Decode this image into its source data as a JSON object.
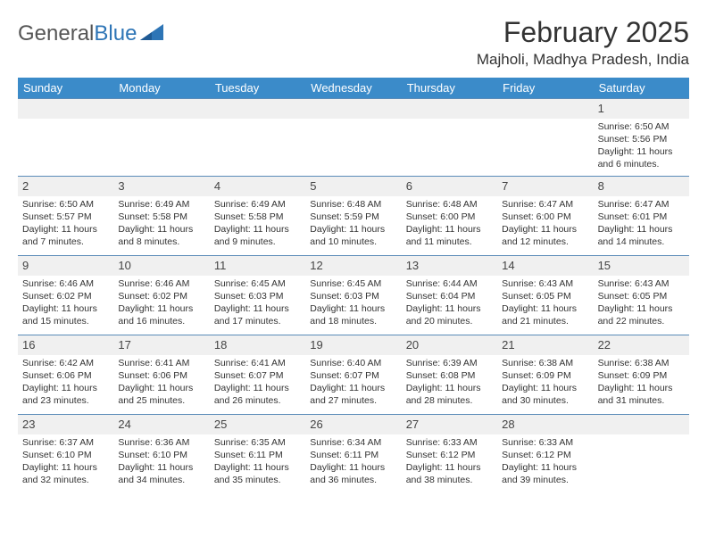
{
  "logo": {
    "text_a": "General",
    "text_b": "Blue",
    "icon_color": "#2e75b6"
  },
  "title": "February 2025",
  "location": "Majholi, Madhya Pradesh, India",
  "weekday_bg": "#3b8bc9",
  "weekday_fg": "#ffffff",
  "daynum_bg": "#f0f0f0",
  "border_color": "#5a8bb8",
  "text_color": "#333333",
  "weekdays": [
    "Sunday",
    "Monday",
    "Tuesday",
    "Wednesday",
    "Thursday",
    "Friday",
    "Saturday"
  ],
  "weeks": [
    [
      {
        "n": "",
        "sr": "",
        "ss": "",
        "dl": ""
      },
      {
        "n": "",
        "sr": "",
        "ss": "",
        "dl": ""
      },
      {
        "n": "",
        "sr": "",
        "ss": "",
        "dl": ""
      },
      {
        "n": "",
        "sr": "",
        "ss": "",
        "dl": ""
      },
      {
        "n": "",
        "sr": "",
        "ss": "",
        "dl": ""
      },
      {
        "n": "",
        "sr": "",
        "ss": "",
        "dl": ""
      },
      {
        "n": "1",
        "sr": "Sunrise: 6:50 AM",
        "ss": "Sunset: 5:56 PM",
        "dl": "Daylight: 11 hours and 6 minutes."
      }
    ],
    [
      {
        "n": "2",
        "sr": "Sunrise: 6:50 AM",
        "ss": "Sunset: 5:57 PM",
        "dl": "Daylight: 11 hours and 7 minutes."
      },
      {
        "n": "3",
        "sr": "Sunrise: 6:49 AM",
        "ss": "Sunset: 5:58 PM",
        "dl": "Daylight: 11 hours and 8 minutes."
      },
      {
        "n": "4",
        "sr": "Sunrise: 6:49 AM",
        "ss": "Sunset: 5:58 PM",
        "dl": "Daylight: 11 hours and 9 minutes."
      },
      {
        "n": "5",
        "sr": "Sunrise: 6:48 AM",
        "ss": "Sunset: 5:59 PM",
        "dl": "Daylight: 11 hours and 10 minutes."
      },
      {
        "n": "6",
        "sr": "Sunrise: 6:48 AM",
        "ss": "Sunset: 6:00 PM",
        "dl": "Daylight: 11 hours and 11 minutes."
      },
      {
        "n": "7",
        "sr": "Sunrise: 6:47 AM",
        "ss": "Sunset: 6:00 PM",
        "dl": "Daylight: 11 hours and 12 minutes."
      },
      {
        "n": "8",
        "sr": "Sunrise: 6:47 AM",
        "ss": "Sunset: 6:01 PM",
        "dl": "Daylight: 11 hours and 14 minutes."
      }
    ],
    [
      {
        "n": "9",
        "sr": "Sunrise: 6:46 AM",
        "ss": "Sunset: 6:02 PM",
        "dl": "Daylight: 11 hours and 15 minutes."
      },
      {
        "n": "10",
        "sr": "Sunrise: 6:46 AM",
        "ss": "Sunset: 6:02 PM",
        "dl": "Daylight: 11 hours and 16 minutes."
      },
      {
        "n": "11",
        "sr": "Sunrise: 6:45 AM",
        "ss": "Sunset: 6:03 PM",
        "dl": "Daylight: 11 hours and 17 minutes."
      },
      {
        "n": "12",
        "sr": "Sunrise: 6:45 AM",
        "ss": "Sunset: 6:03 PM",
        "dl": "Daylight: 11 hours and 18 minutes."
      },
      {
        "n": "13",
        "sr": "Sunrise: 6:44 AM",
        "ss": "Sunset: 6:04 PM",
        "dl": "Daylight: 11 hours and 20 minutes."
      },
      {
        "n": "14",
        "sr": "Sunrise: 6:43 AM",
        "ss": "Sunset: 6:05 PM",
        "dl": "Daylight: 11 hours and 21 minutes."
      },
      {
        "n": "15",
        "sr": "Sunrise: 6:43 AM",
        "ss": "Sunset: 6:05 PM",
        "dl": "Daylight: 11 hours and 22 minutes."
      }
    ],
    [
      {
        "n": "16",
        "sr": "Sunrise: 6:42 AM",
        "ss": "Sunset: 6:06 PM",
        "dl": "Daylight: 11 hours and 23 minutes."
      },
      {
        "n": "17",
        "sr": "Sunrise: 6:41 AM",
        "ss": "Sunset: 6:06 PM",
        "dl": "Daylight: 11 hours and 25 minutes."
      },
      {
        "n": "18",
        "sr": "Sunrise: 6:41 AM",
        "ss": "Sunset: 6:07 PM",
        "dl": "Daylight: 11 hours and 26 minutes."
      },
      {
        "n": "19",
        "sr": "Sunrise: 6:40 AM",
        "ss": "Sunset: 6:07 PM",
        "dl": "Daylight: 11 hours and 27 minutes."
      },
      {
        "n": "20",
        "sr": "Sunrise: 6:39 AM",
        "ss": "Sunset: 6:08 PM",
        "dl": "Daylight: 11 hours and 28 minutes."
      },
      {
        "n": "21",
        "sr": "Sunrise: 6:38 AM",
        "ss": "Sunset: 6:09 PM",
        "dl": "Daylight: 11 hours and 30 minutes."
      },
      {
        "n": "22",
        "sr": "Sunrise: 6:38 AM",
        "ss": "Sunset: 6:09 PM",
        "dl": "Daylight: 11 hours and 31 minutes."
      }
    ],
    [
      {
        "n": "23",
        "sr": "Sunrise: 6:37 AM",
        "ss": "Sunset: 6:10 PM",
        "dl": "Daylight: 11 hours and 32 minutes."
      },
      {
        "n": "24",
        "sr": "Sunrise: 6:36 AM",
        "ss": "Sunset: 6:10 PM",
        "dl": "Daylight: 11 hours and 34 minutes."
      },
      {
        "n": "25",
        "sr": "Sunrise: 6:35 AM",
        "ss": "Sunset: 6:11 PM",
        "dl": "Daylight: 11 hours and 35 minutes."
      },
      {
        "n": "26",
        "sr": "Sunrise: 6:34 AM",
        "ss": "Sunset: 6:11 PM",
        "dl": "Daylight: 11 hours and 36 minutes."
      },
      {
        "n": "27",
        "sr": "Sunrise: 6:33 AM",
        "ss": "Sunset: 6:12 PM",
        "dl": "Daylight: 11 hours and 38 minutes."
      },
      {
        "n": "28",
        "sr": "Sunrise: 6:33 AM",
        "ss": "Sunset: 6:12 PM",
        "dl": "Daylight: 11 hours and 39 minutes."
      },
      {
        "n": "",
        "sr": "",
        "ss": "",
        "dl": ""
      }
    ]
  ]
}
